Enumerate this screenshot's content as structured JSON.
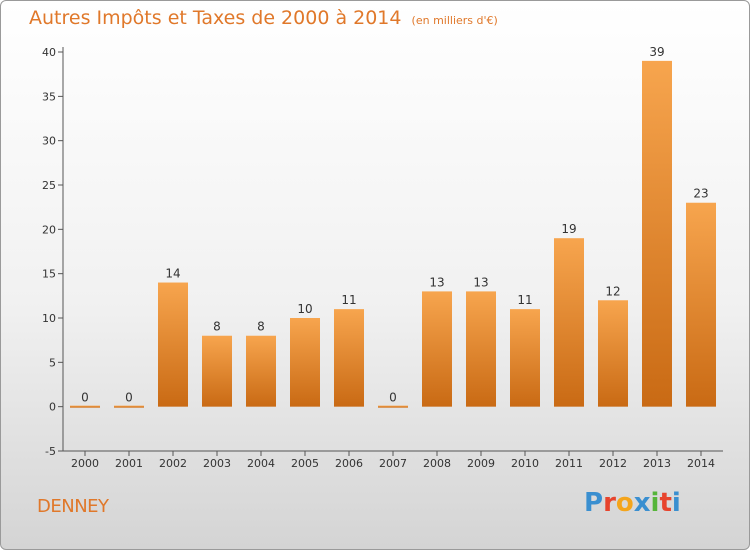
{
  "header": {
    "title": "Autres Impôts et Taxes de 2000 à 2014",
    "subtitle": "(en milliers d'€)"
  },
  "footer": {
    "commune": "DENNEY",
    "logo_letters": [
      "P",
      "r",
      "o",
      "x",
      "i",
      "t",
      "i"
    ],
    "logo_colors": [
      "#3a8fd0",
      "#e7442d",
      "#f4a51c",
      "#3a8fd0",
      "#56b53a",
      "#e7442d",
      "#3a8fd0"
    ]
  },
  "colors": {
    "bar_top": "#f7a54e",
    "bar_bottom": "#c96a14",
    "title": "#e0782a"
  },
  "chart_data": {
    "type": "bar",
    "categories": [
      "2000",
      "2001",
      "2002",
      "2003",
      "2004",
      "2005",
      "2006",
      "2007",
      "2008",
      "2009",
      "2010",
      "2011",
      "2012",
      "2013",
      "2014"
    ],
    "values": [
      0,
      0,
      14,
      8,
      8,
      10,
      11,
      0,
      13,
      13,
      11,
      19,
      12,
      39,
      23
    ],
    "title": "Autres Impôts et Taxes de 2000 à 2014",
    "ylim": [
      -5,
      40
    ],
    "yticks": [
      -5,
      0,
      5,
      10,
      15,
      20,
      25,
      30,
      35,
      40
    ],
    "grid": false,
    "data_labels": true
  }
}
